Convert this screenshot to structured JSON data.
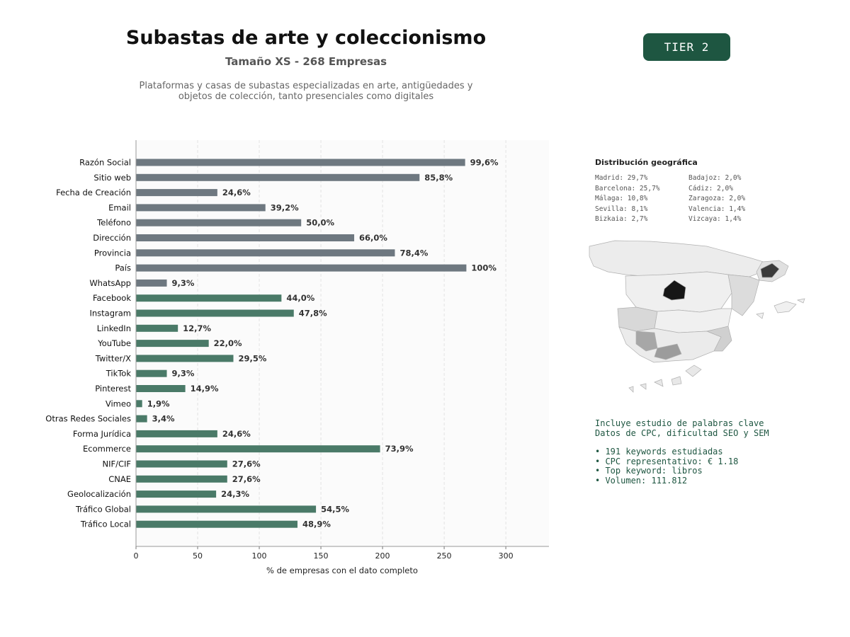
{
  "header": {
    "title": "Subastas de arte y coleccionismo",
    "subtitle": "Tamaño XS - 268 Empresas",
    "description_line1": "Plataformas y casas de subastas especializadas en arte, antigüedades y",
    "description_line2": "objetos de colección, tanto presenciales como digitales",
    "tier": "TIER 2"
  },
  "chart_data": {
    "type": "bar",
    "orientation": "horizontal",
    "xlabel": "% de empresas con el dato completo",
    "xlim": [
      0,
      335
    ],
    "xticks": [
      0,
      50,
      100,
      150,
      200,
      250,
      300
    ],
    "grid": true,
    "categories": [
      "Razón Social",
      "Sitio web",
      "Fecha de Creación",
      "Email",
      "Teléfono",
      "Dirección",
      "Provincia",
      "País",
      "WhatsApp",
      "Facebook",
      "Instagram",
      "LinkedIn",
      "YouTube",
      "Twitter/X",
      "TikTok",
      "Pinterest",
      "Vimeo",
      "Otras Redes Sociales",
      "Forma Jurídica",
      "Ecommerce",
      "NIF/CIF",
      "CNAE",
      "Geolocalización",
      "Tráfico Global",
      "Tráfico Local"
    ],
    "values": [
      267,
      230,
      66,
      105,
      134,
      177,
      210,
      268,
      25,
      118,
      128,
      34,
      59,
      79,
      25,
      40,
      5,
      9,
      66,
      198,
      74,
      74,
      65,
      146,
      131
    ],
    "labels": [
      "99,6%",
      "85,8%",
      "24,6%",
      "39,2%",
      "50,0%",
      "66,0%",
      "78,4%",
      "100%",
      "9,3%",
      "44,0%",
      "47,8%",
      "12,7%",
      "22,0%",
      "29,5%",
      "9,3%",
      "14,9%",
      "1,9%",
      "3,4%",
      "24,6%",
      "73,9%",
      "27,6%",
      "27,6%",
      "24,3%",
      "54,5%",
      "48,9%"
    ],
    "colors": [
      "#6e7880",
      "#6e7880",
      "#6e7880",
      "#6e7880",
      "#6e7880",
      "#6e7880",
      "#6e7880",
      "#6e7880",
      "#6e7880",
      "#4a7a68",
      "#4a7a68",
      "#4a7a68",
      "#4a7a68",
      "#4a7a68",
      "#4a7a68",
      "#4a7a68",
      "#4a7a68",
      "#4a7a68",
      "#4a7a68",
      "#4a7a68",
      "#4a7a68",
      "#4a7a68",
      "#4a7a68",
      "#4a7a68",
      "#4a7a68"
    ]
  },
  "geo": {
    "title": "Distribución geográfica",
    "items": [
      "Madrid: 29,7%",
      "Badajoz: 2,0%",
      "Barcelona: 25,7%",
      "Cádiz: 2,0%",
      "Málaga: 10,8%",
      "Zaragoza: 2,0%",
      "Sevilla: 8,1%",
      "Valencia: 1,4%",
      "Bizkaia: 2,7%",
      "Vizcaya: 1,4%"
    ]
  },
  "keywords": {
    "line1": "Incluye estudio de palabras clave",
    "line2": "Datos de CPC, dificultad SEO y SEM",
    "bullet1": "• 191 keywords estudiadas",
    "bullet2": "• CPC representativo: € 1.18",
    "bullet3": "• Top keyword: libros",
    "bullet4": "• Volumen: 111.812"
  },
  "colors": {
    "accent": "#1e5641",
    "bar_gray": "#6e7880",
    "bar_green": "#4a7a68"
  }
}
